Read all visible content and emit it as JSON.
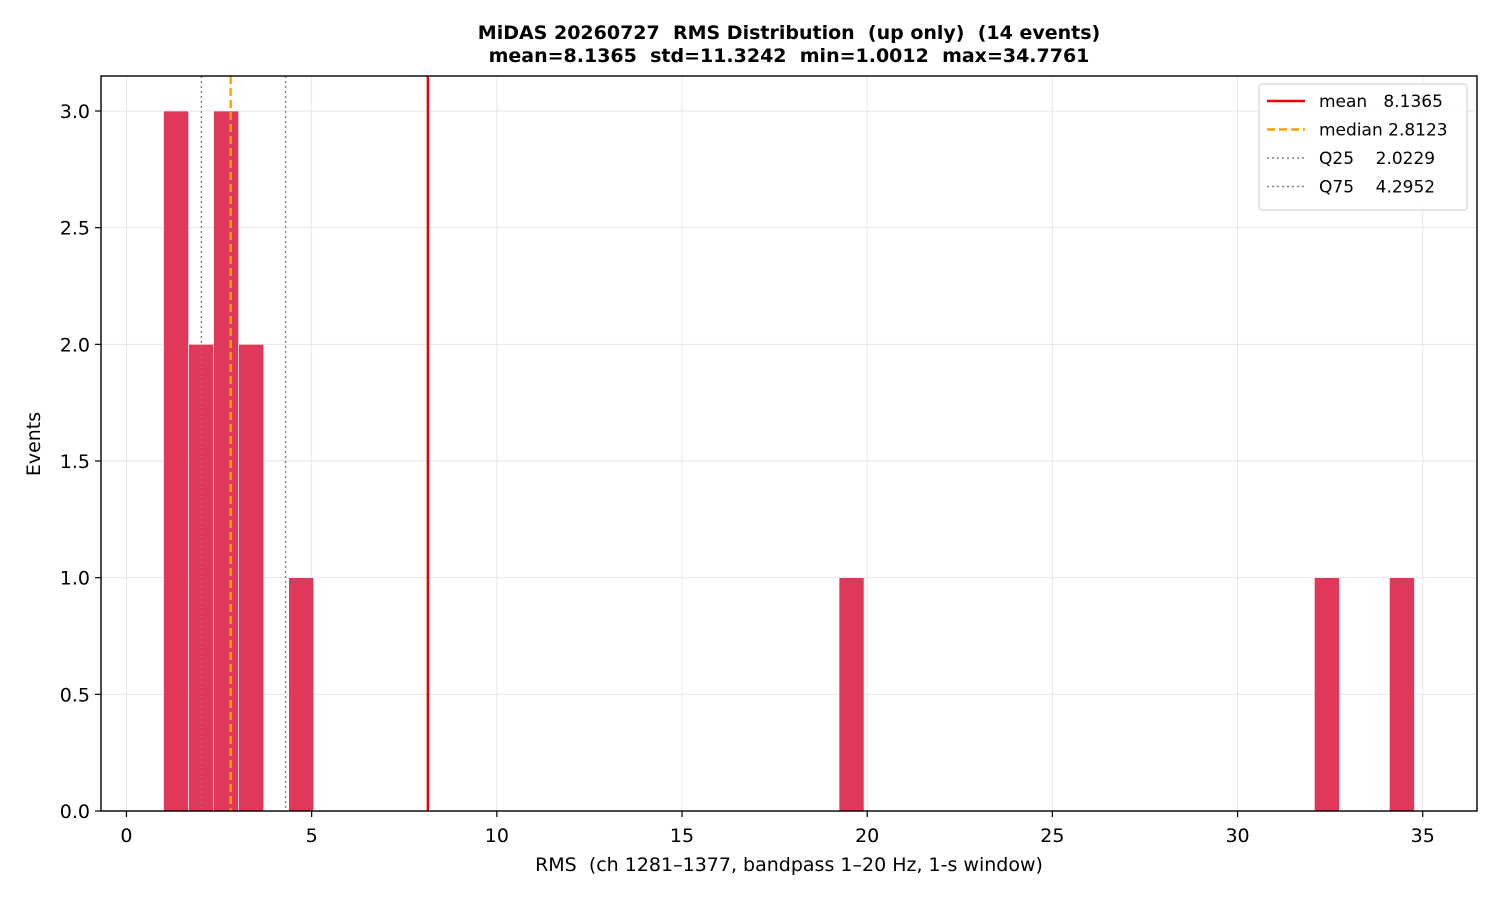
{
  "chart_data": {
    "type": "histogram",
    "title": "MiDAS 20260727  RMS Distribution  (up only)  (14 events)",
    "subtitle": "mean=8.1365  std=11.3242  min=1.0012  max=34.7761",
    "x_label": "RMS  (ch 1281–1377, bandpass 1–20 Hz, 1-s window)",
    "y_label": "Events",
    "bins": [
      1.0012,
      1.6767,
      2.3522,
      3.0277,
      3.7032,
      4.3787,
      5.0542,
      5.7297,
      6.4052,
      7.0807,
      7.7562,
      8.4317,
      9.1072,
      9.7827,
      10.4582,
      11.1337,
      11.8092,
      12.4847,
      13.1602,
      13.8357,
      14.5112,
      15.1867,
      15.8622,
      16.5377,
      17.2132,
      17.8887,
      18.5641,
      19.2396,
      19.9151,
      20.5906,
      21.2661,
      21.9416,
      22.6171,
      23.2926,
      23.9681,
      24.6436,
      25.3191,
      25.9946,
      26.6701,
      27.3456,
      28.0211,
      28.6966,
      29.3721,
      30.0476,
      30.7231,
      31.3986,
      32.0741,
      32.7496,
      33.4251,
      34.1006,
      34.7761
    ],
    "values": [
      3,
      2,
      3,
      2,
      0,
      1,
      0,
      0,
      0,
      0,
      0,
      0,
      0,
      0,
      0,
      0,
      0,
      0,
      0,
      0,
      0,
      0,
      0,
      0,
      0,
      0,
      0,
      1,
      0,
      0,
      0,
      0,
      0,
      0,
      0,
      0,
      0,
      0,
      0,
      0,
      0,
      0,
      0,
      0,
      0,
      0,
      1,
      0,
      0,
      1
    ],
    "color": "#e0385a",
    "reference_lines": [
      {
        "name": "mean   8.1365",
        "value": 8.1365,
        "color": "#e8000b",
        "style": "solid"
      },
      {
        "name": "median 2.8123",
        "value": 2.8123,
        "color": "#ffa000",
        "style": "dashed"
      },
      {
        "name": "Q25    2.0229",
        "value": 2.0229,
        "color": "#808080",
        "style": "dotted"
      },
      {
        "name": "Q75    4.2952",
        "value": 4.2952,
        "color": "#808080",
        "style": "dotted"
      }
    ],
    "xlim": [
      -0.6875,
      36.4649
    ],
    "xticks": [
      0,
      5,
      10,
      15,
      20,
      25,
      30,
      35
    ],
    "ylim": [
      0,
      3.15
    ],
    "yticks": [
      {
        "value": 0,
        "label": "0.0"
      },
      0.5,
      {
        "value": 1,
        "label": "1.0"
      },
      1.5,
      {
        "value": 2,
        "label": "2.0"
      },
      2.5,
      {
        "value": 3,
        "label": "3.0"
      }
    ],
    "grid": true,
    "legend": "upper right"
  }
}
